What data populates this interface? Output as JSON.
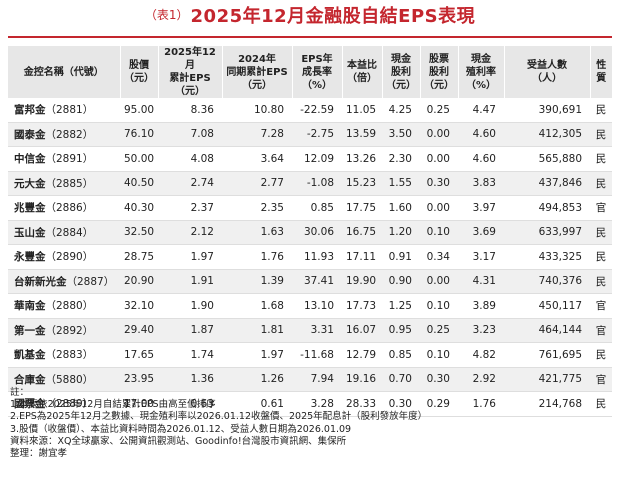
{
  "title": {
    "prefix": "（表1）",
    "main": "2025年12月金融股自結EPS表現"
  },
  "columns": [
    [
      "金控名稱（代號）"
    ],
    [
      "股價",
      "（元）"
    ],
    [
      "2025年12月",
      "累計EPS",
      "（元）"
    ],
    [
      "2024年",
      "同期累計EPS",
      "（元）"
    ],
    [
      "EPS年",
      "成長率",
      "（%）"
    ],
    [
      "本益比",
      "（倍）"
    ],
    [
      "現金",
      "股利",
      "（元）"
    ],
    [
      "股票",
      "股利",
      "（元）"
    ],
    [
      "現金",
      "殖利率",
      "（%）"
    ],
    [
      "受益人數",
      "（人）"
    ],
    [
      "性",
      "質"
    ]
  ],
  "rows": [
    {
      "name": "富邦金",
      "code": "（2881）",
      "price": "95.00",
      "eps2025": "8.36",
      "eps2024": "10.80",
      "growth": "-22.59",
      "pe": "11.05",
      "cash_div": "4.25",
      "stock_div": "0.25",
      "yield": "4.47",
      "holders": "390,691",
      "type": "民"
    },
    {
      "name": "國泰金",
      "code": "（2882）",
      "price": "76.10",
      "eps2025": "7.08",
      "eps2024": "7.28",
      "growth": "-2.75",
      "pe": "13.59",
      "cash_div": "3.50",
      "stock_div": "0.00",
      "yield": "4.60",
      "holders": "412,305",
      "type": "民"
    },
    {
      "name": "中信金",
      "code": "（2891）",
      "price": "50.00",
      "eps2025": "4.08",
      "eps2024": "3.64",
      "growth": "12.09",
      "pe": "13.26",
      "cash_div": "2.30",
      "stock_div": "0.00",
      "yield": "4.60",
      "holders": "565,880",
      "type": "民"
    },
    {
      "name": "元大金",
      "code": "（2885）",
      "price": "40.50",
      "eps2025": "2.74",
      "eps2024": "2.77",
      "growth": "-1.08",
      "pe": "15.23",
      "cash_div": "1.55",
      "stock_div": "0.30",
      "yield": "3.83",
      "holders": "437,846",
      "type": "民"
    },
    {
      "name": "兆豐金",
      "code": "（2886）",
      "price": "40.30",
      "eps2025": "2.37",
      "eps2024": "2.35",
      "growth": "0.85",
      "pe": "17.75",
      "cash_div": "1.60",
      "stock_div": "0.00",
      "yield": "3.97",
      "holders": "494,853",
      "type": "官"
    },
    {
      "name": "玉山金",
      "code": "（2884）",
      "price": "32.50",
      "eps2025": "2.12",
      "eps2024": "1.63",
      "growth": "30.06",
      "pe": "16.75",
      "cash_div": "1.20",
      "stock_div": "0.10",
      "yield": "3.69",
      "holders": "633,997",
      "type": "民"
    },
    {
      "name": "永豐金",
      "code": "（2890）",
      "price": "28.75",
      "eps2025": "1.97",
      "eps2024": "1.76",
      "growth": "11.93",
      "pe": "17.11",
      "cash_div": "0.91",
      "stock_div": "0.34",
      "yield": "3.17",
      "holders": "433,325",
      "type": "民"
    },
    {
      "name": "台新新光金",
      "code": "（2887）",
      "price": "20.90",
      "eps2025": "1.91",
      "eps2024": "1.39",
      "growth": "37.41",
      "pe": "19.90",
      "cash_div": "0.90",
      "stock_div": "0.00",
      "yield": "4.31",
      "holders": "740,376",
      "type": "民"
    },
    {
      "name": "華南金",
      "code": "（2880）",
      "price": "32.10",
      "eps2025": "1.90",
      "eps2024": "1.68",
      "growth": "13.10",
      "pe": "17.73",
      "cash_div": "1.25",
      "stock_div": "0.10",
      "yield": "3.89",
      "holders": "450,117",
      "type": "官"
    },
    {
      "name": "第一金",
      "code": "（2892）",
      "price": "29.40",
      "eps2025": "1.87",
      "eps2024": "1.81",
      "growth": "3.31",
      "pe": "16.07",
      "cash_div": "0.95",
      "stock_div": "0.25",
      "yield": "3.23",
      "holders": "464,144",
      "type": "官"
    },
    {
      "name": "凱基金",
      "code": "（2883）",
      "price": "17.65",
      "eps2025": "1.74",
      "eps2024": "1.97",
      "growth": "-11.68",
      "pe": "12.79",
      "cash_div": "0.85",
      "stock_div": "0.10",
      "yield": "4.82",
      "holders": "761,695",
      "type": "民"
    },
    {
      "name": "合庫金",
      "code": "（5880）",
      "price": "23.95",
      "eps2025": "1.36",
      "eps2024": "1.26",
      "growth": "7.94",
      "pe": "19.16",
      "cash_div": "0.70",
      "stock_div": "0.30",
      "yield": "2.92",
      "holders": "421,775",
      "type": "官"
    },
    {
      "name": "國票金",
      "code": "（2889）",
      "price": "17.00",
      "eps2025": "0.63",
      "eps2024": "0.61",
      "growth": "3.28",
      "pe": "28.33",
      "cash_div": "0.30",
      "stock_div": "0.29",
      "yield": "1.76",
      "holders": "214,768",
      "type": "民"
    }
  ],
  "notes": [
    "註：",
    "1.本表依2025年12月自結累計EPS由高至低排序",
    "2.EPS為2025年12月之數據、現金殖利率以2026.01.12收盤價、2025年配息計（股利發放年度）",
    "3.股價（收盤價）、本益比資料時間為2026.01.12、受益人數日期為2026.01.09",
    "資料來源：XQ全球贏家、公開資訊觀測站、Goodinfo!台灣股市資訊網、集保所",
    "整理：謝宜孝"
  ]
}
